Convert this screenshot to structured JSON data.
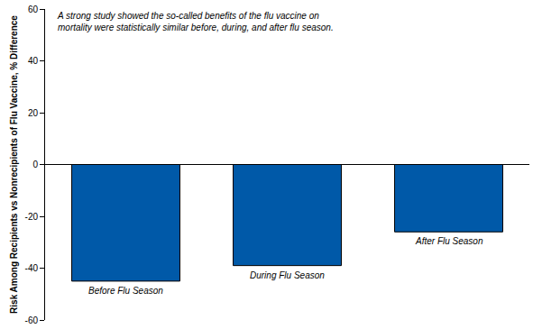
{
  "chart_data": {
    "type": "bar",
    "annotation": "A strong study showed the so-called benefits of the flu vaccine on\nmortality were statistically similar before, during, and after flu season.",
    "y_label": "Risk Among Recipients vs Nonrecipients of Flu Vaccine, % Difference",
    "categories": [
      "Before Flu Season",
      "During Flu Season",
      "After Flu Season"
    ],
    "values": [
      -45,
      -39,
      -26
    ],
    "color": "#0059a8",
    "ylim": [
      -60,
      60
    ],
    "yticks": [
      -60,
      -40,
      -20,
      0,
      20,
      40,
      60
    ],
    "grid": false,
    "tick_labels": "y"
  }
}
